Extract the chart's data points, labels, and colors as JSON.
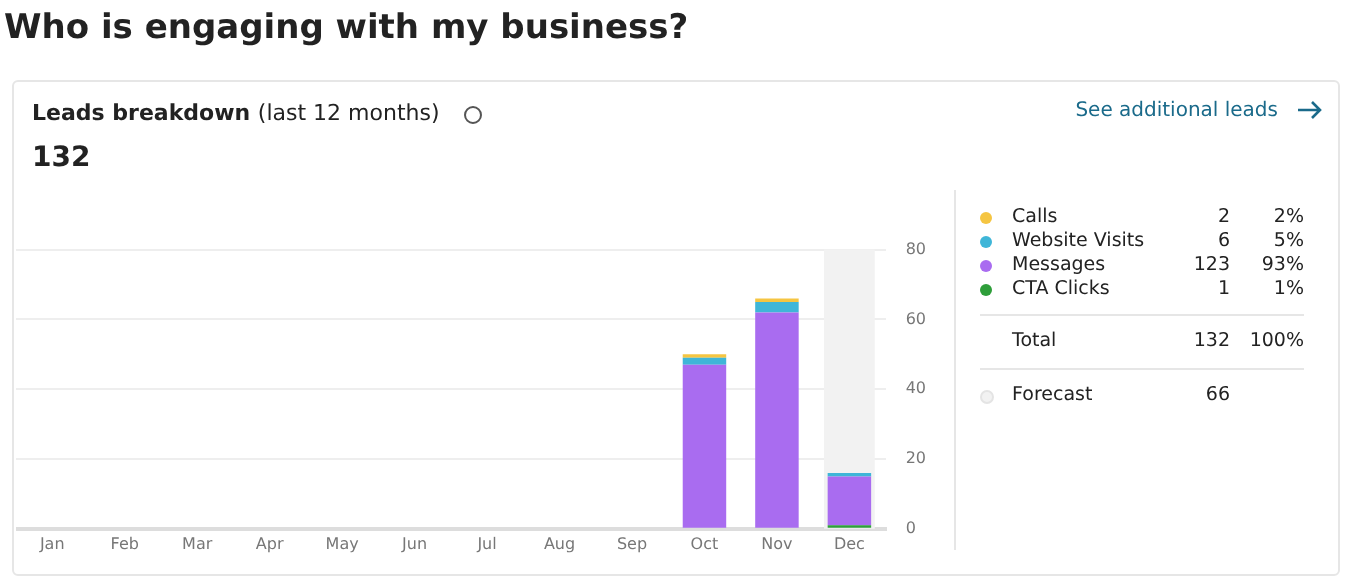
{
  "chart_data": {
    "type": "bar",
    "title": "Who is engaging with my business?",
    "subtitle": "Leads breakdown (last 12 months)",
    "categories": [
      "Jan",
      "Feb",
      "Mar",
      "Apr",
      "May",
      "Jun",
      "Jul",
      "Aug",
      "Sep",
      "Oct",
      "Nov",
      "Dec"
    ],
    "stacked": true,
    "series": [
      {
        "name": "CTA Clicks",
        "color": "#2e9e3a",
        "values": [
          0,
          0,
          0,
          0,
          0,
          0,
          0,
          0,
          0,
          0,
          0,
          1
        ]
      },
      {
        "name": "Messages",
        "color": "#a96cf0",
        "values": [
          0,
          0,
          0,
          0,
          0,
          0,
          0,
          0,
          0,
          47,
          62,
          14
        ]
      },
      {
        "name": "Website Visits",
        "color": "#3fb6d8",
        "values": [
          0,
          0,
          0,
          0,
          0,
          0,
          0,
          0,
          0,
          2,
          3,
          1
        ]
      },
      {
        "name": "Calls",
        "color": "#f5c542",
        "values": [
          0,
          0,
          0,
          0,
          0,
          0,
          0,
          0,
          0,
          1,
          1,
          0
        ]
      }
    ],
    "ylim": [
      0,
      80
    ],
    "yticks": [
      0,
      20,
      40,
      60,
      80
    ],
    "grid": "y",
    "legend": "right",
    "bands": [
      {
        "axis": "x",
        "from": "Dec",
        "to": "Dec",
        "color": "#f2f2f2"
      }
    ],
    "annotations": [
      "2",
      "2%",
      "6",
      "5%",
      "123",
      "93%",
      "1",
      "1%",
      "Total",
      "132",
      "100%",
      "66",
      "132",
      "See additional leads",
      "Forecast"
    ]
  }
}
